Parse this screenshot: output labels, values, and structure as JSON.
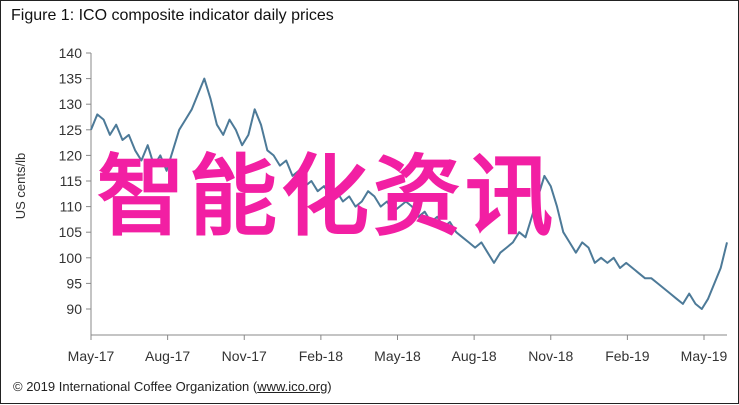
{
  "title": "Figure 1: ICO composite indicator daily prices",
  "credit": {
    "prefix": "© 2019 International Coffee Organization (",
    "link": "www.ico.org",
    "suffix": ")"
  },
  "watermark": "智能化资讯",
  "colors": {
    "line": "#4d7a98",
    "axis": "#888888",
    "text": "#333333",
    "watermark": "#f21fa3"
  },
  "chart_data": {
    "type": "line",
    "ylabel": "US cents/lb",
    "ylim": [
      90,
      140
    ],
    "yticks": [
      90,
      95,
      100,
      105,
      110,
      115,
      120,
      125,
      130,
      135,
      140
    ],
    "xticks": [
      "May-17",
      "Aug-17",
      "Nov-17",
      "Feb-18",
      "May-18",
      "Aug-18",
      "Nov-18",
      "Feb-19",
      "May-19"
    ],
    "grid": false,
    "series": [
      {
        "values": [
          125,
          128,
          127,
          124,
          126,
          123,
          124,
          121,
          119,
          122,
          118,
          120,
          117,
          121,
          125,
          127,
          129,
          132,
          135,
          131,
          126,
          124,
          127,
          125,
          122,
          124,
          129,
          126,
          121,
          120,
          118,
          119,
          116,
          117,
          114,
          115,
          113,
          114,
          112,
          113,
          111,
          112,
          110,
          111,
          113,
          112,
          110,
          111,
          109,
          110,
          111,
          110,
          108,
          109,
          107,
          108,
          106,
          107,
          105,
          104,
          103,
          102,
          103,
          101,
          99,
          101,
          102,
          103,
          105,
          104,
          108,
          112,
          116,
          114,
          110,
          105,
          103,
          101,
          103,
          102,
          99,
          100,
          99,
          100,
          98,
          99,
          98,
          97,
          96,
          96,
          95,
          94,
          93,
          92,
          91,
          93,
          91,
          90,
          92,
          95,
          98,
          103
        ]
      }
    ]
  }
}
